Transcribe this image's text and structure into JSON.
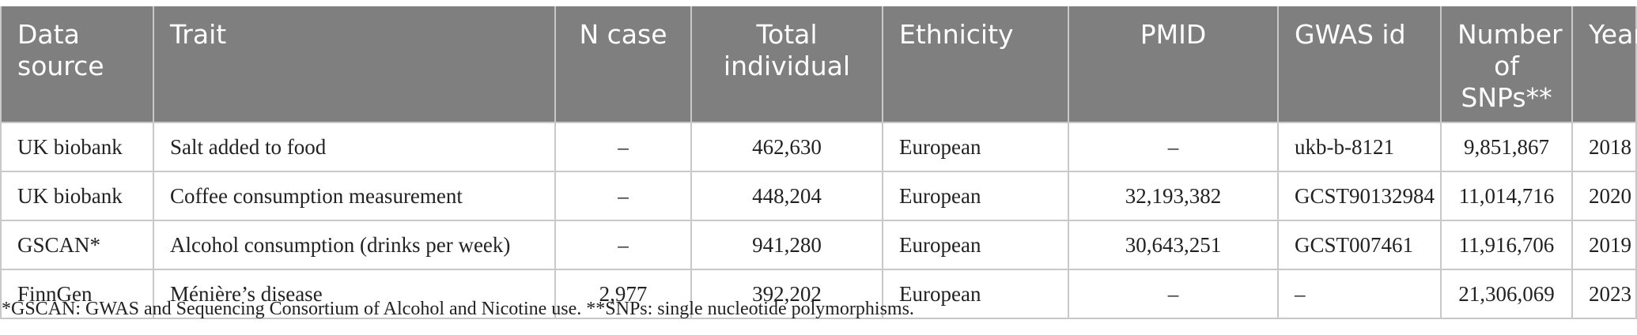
{
  "table": {
    "headers": [
      "Data\nsource",
      "Trait",
      "N case",
      "Total\nindividual",
      "Ethnicity",
      "PMID",
      "GWAS id",
      "Number\nof SNPs**",
      "Year"
    ],
    "rows": [
      [
        "UK biobank",
        "Salt added to food",
        "–",
        "462,630",
        "European",
        "–",
        "ukb-b-8121",
        "9,851,867",
        "2018"
      ],
      [
        "UK biobank",
        "Coffee consumption measurement",
        "–",
        "448,204",
        "European",
        "32,193,382",
        "GCST90132984",
        "11,014,716",
        "2020"
      ],
      [
        "GSCAN*",
        "Alcohol consumption (drinks per week)",
        "–",
        "941,280",
        "European",
        "30,643,251",
        "GCST007461",
        "11,916,706",
        "2019"
      ],
      [
        "FinnGen",
        "Ménière’s disease",
        "2,977",
        "392,202",
        "European",
        "–",
        "–",
        "21,306,069",
        "2023"
      ]
    ]
  },
  "footnote": "*GSCAN: GWAS and Sequencing Consortium of Alcohol and Nicotine use. **SNPs: single nucleotide polymorphisms."
}
